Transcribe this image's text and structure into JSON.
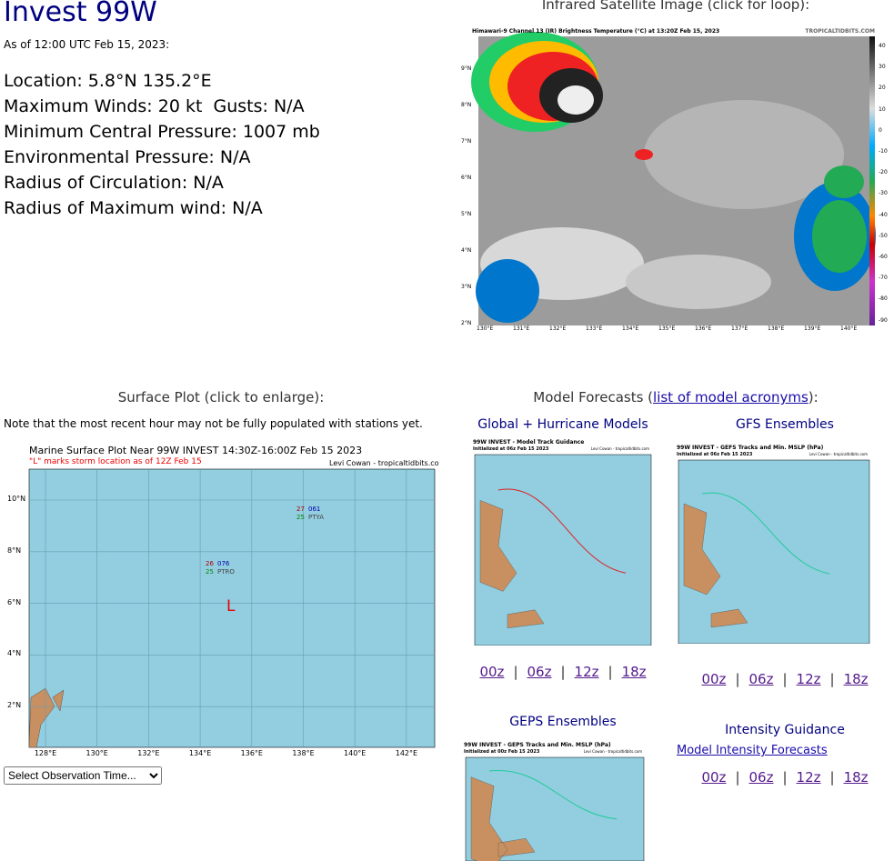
{
  "header": {
    "title": "Invest 99W",
    "as_of": "As of 12:00 UTC Feb 15, 2023:"
  },
  "storm_info": [
    "Location: 5.8°N 135.2°E",
    "Maximum Winds: 20 kt  Gusts: N/A",
    "Minimum Central Pressure: 1007 mb",
    "Environmental Pressure: N/A",
    "Radius of Circulation: N/A",
    "Radius of Maximum wind: N/A"
  ],
  "satellite": {
    "heading": "Infrared Satellite Image (click for loop):",
    "image_title": "Himawari-9 Channel 13 (IR) Brightness Temperature (°C) at 13:20Z Feb 15, 2023",
    "image_credit": "TROPICALTIDBITS.COM",
    "x_ticks": [
      "130°E",
      "131°E",
      "132°E",
      "133°E",
      "134°E",
      "135°E",
      "136°E",
      "137°E",
      "138°E",
      "139°E",
      "140°E"
    ],
    "y_ticks": [
      "9°N",
      "8°N",
      "7°N",
      "6°N",
      "5°N",
      "4°N",
      "3°N",
      "2°N"
    ],
    "colorbar_ticks": [
      "40",
      "30",
      "20",
      "10",
      "0",
      "-10",
      "-20",
      "-30",
      "-40",
      "-50",
      "-60",
      "-70",
      "-80",
      "-90"
    ]
  },
  "surface_plot": {
    "heading": "Surface Plot (click to enlarge):",
    "note": "Note that the most recent hour may not be fully populated with stations yet.",
    "image_title": "Marine Surface Plot Near 99W INVEST 14:30Z-16:00Z Feb 15 2023",
    "image_subtitle": "\"L\" marks storm location as of 12Z Feb 15",
    "image_credit": "Levi Cowan - tropicaltidbits.com",
    "x_ticks": [
      "128°E",
      "130°E",
      "132°E",
      "134°E",
      "136°E",
      "138°E",
      "140°E",
      "142°E"
    ],
    "y_ticks": [
      "10°N",
      "8°N",
      "6°N",
      "4°N",
      "2°N"
    ],
    "stations": [
      {
        "temp": "27",
        "pressure": "061",
        "dew": "25",
        "id": "PTYA"
      },
      {
        "temp": "26",
        "pressure": "076",
        "dew": "25",
        "id": "PTRO"
      }
    ],
    "storm_marker": "L",
    "select_label": "Select Observation Time..."
  },
  "model_forecasts": {
    "heading_prefix": "Model Forecasts (",
    "heading_link": "list of model acronyms",
    "heading_suffix": "):",
    "run_separator": "|",
    "panels": [
      {
        "title": "Global + Hurricane Models",
        "image_title": "99W INVEST - Model Track Guidance",
        "image_init": "Initialized at 06z Feb 15 2023",
        "image_credit": "Levi Cowan - tropicaltidbits.com",
        "runs": [
          "00z",
          "06z",
          "12z",
          "18z"
        ]
      },
      {
        "title": "GFS Ensembles",
        "image_title": "99W INVEST - GEFS Tracks and Min. MSLP (hPa)",
        "image_init": "Initialized at 06z Feb 15 2023",
        "image_credit": "Levi Cowan - tropicaltidbits.com",
        "runs": [
          "00z",
          "06z",
          "12z",
          "18z"
        ]
      },
      {
        "title": "GEPS Ensembles",
        "image_title": "99W INVEST - GEPS Tracks and Min. MSLP (hPa)",
        "image_init": "Initialized at 00z Feb 15 2023",
        "image_credit": "Levi Cowan - tropicaltidbits.com"
      }
    ],
    "intensity": {
      "title": "Intensity Guidance",
      "link": "Model Intensity Forecasts",
      "runs": [
        "00z",
        "06z",
        "12z",
        "18z"
      ]
    }
  }
}
